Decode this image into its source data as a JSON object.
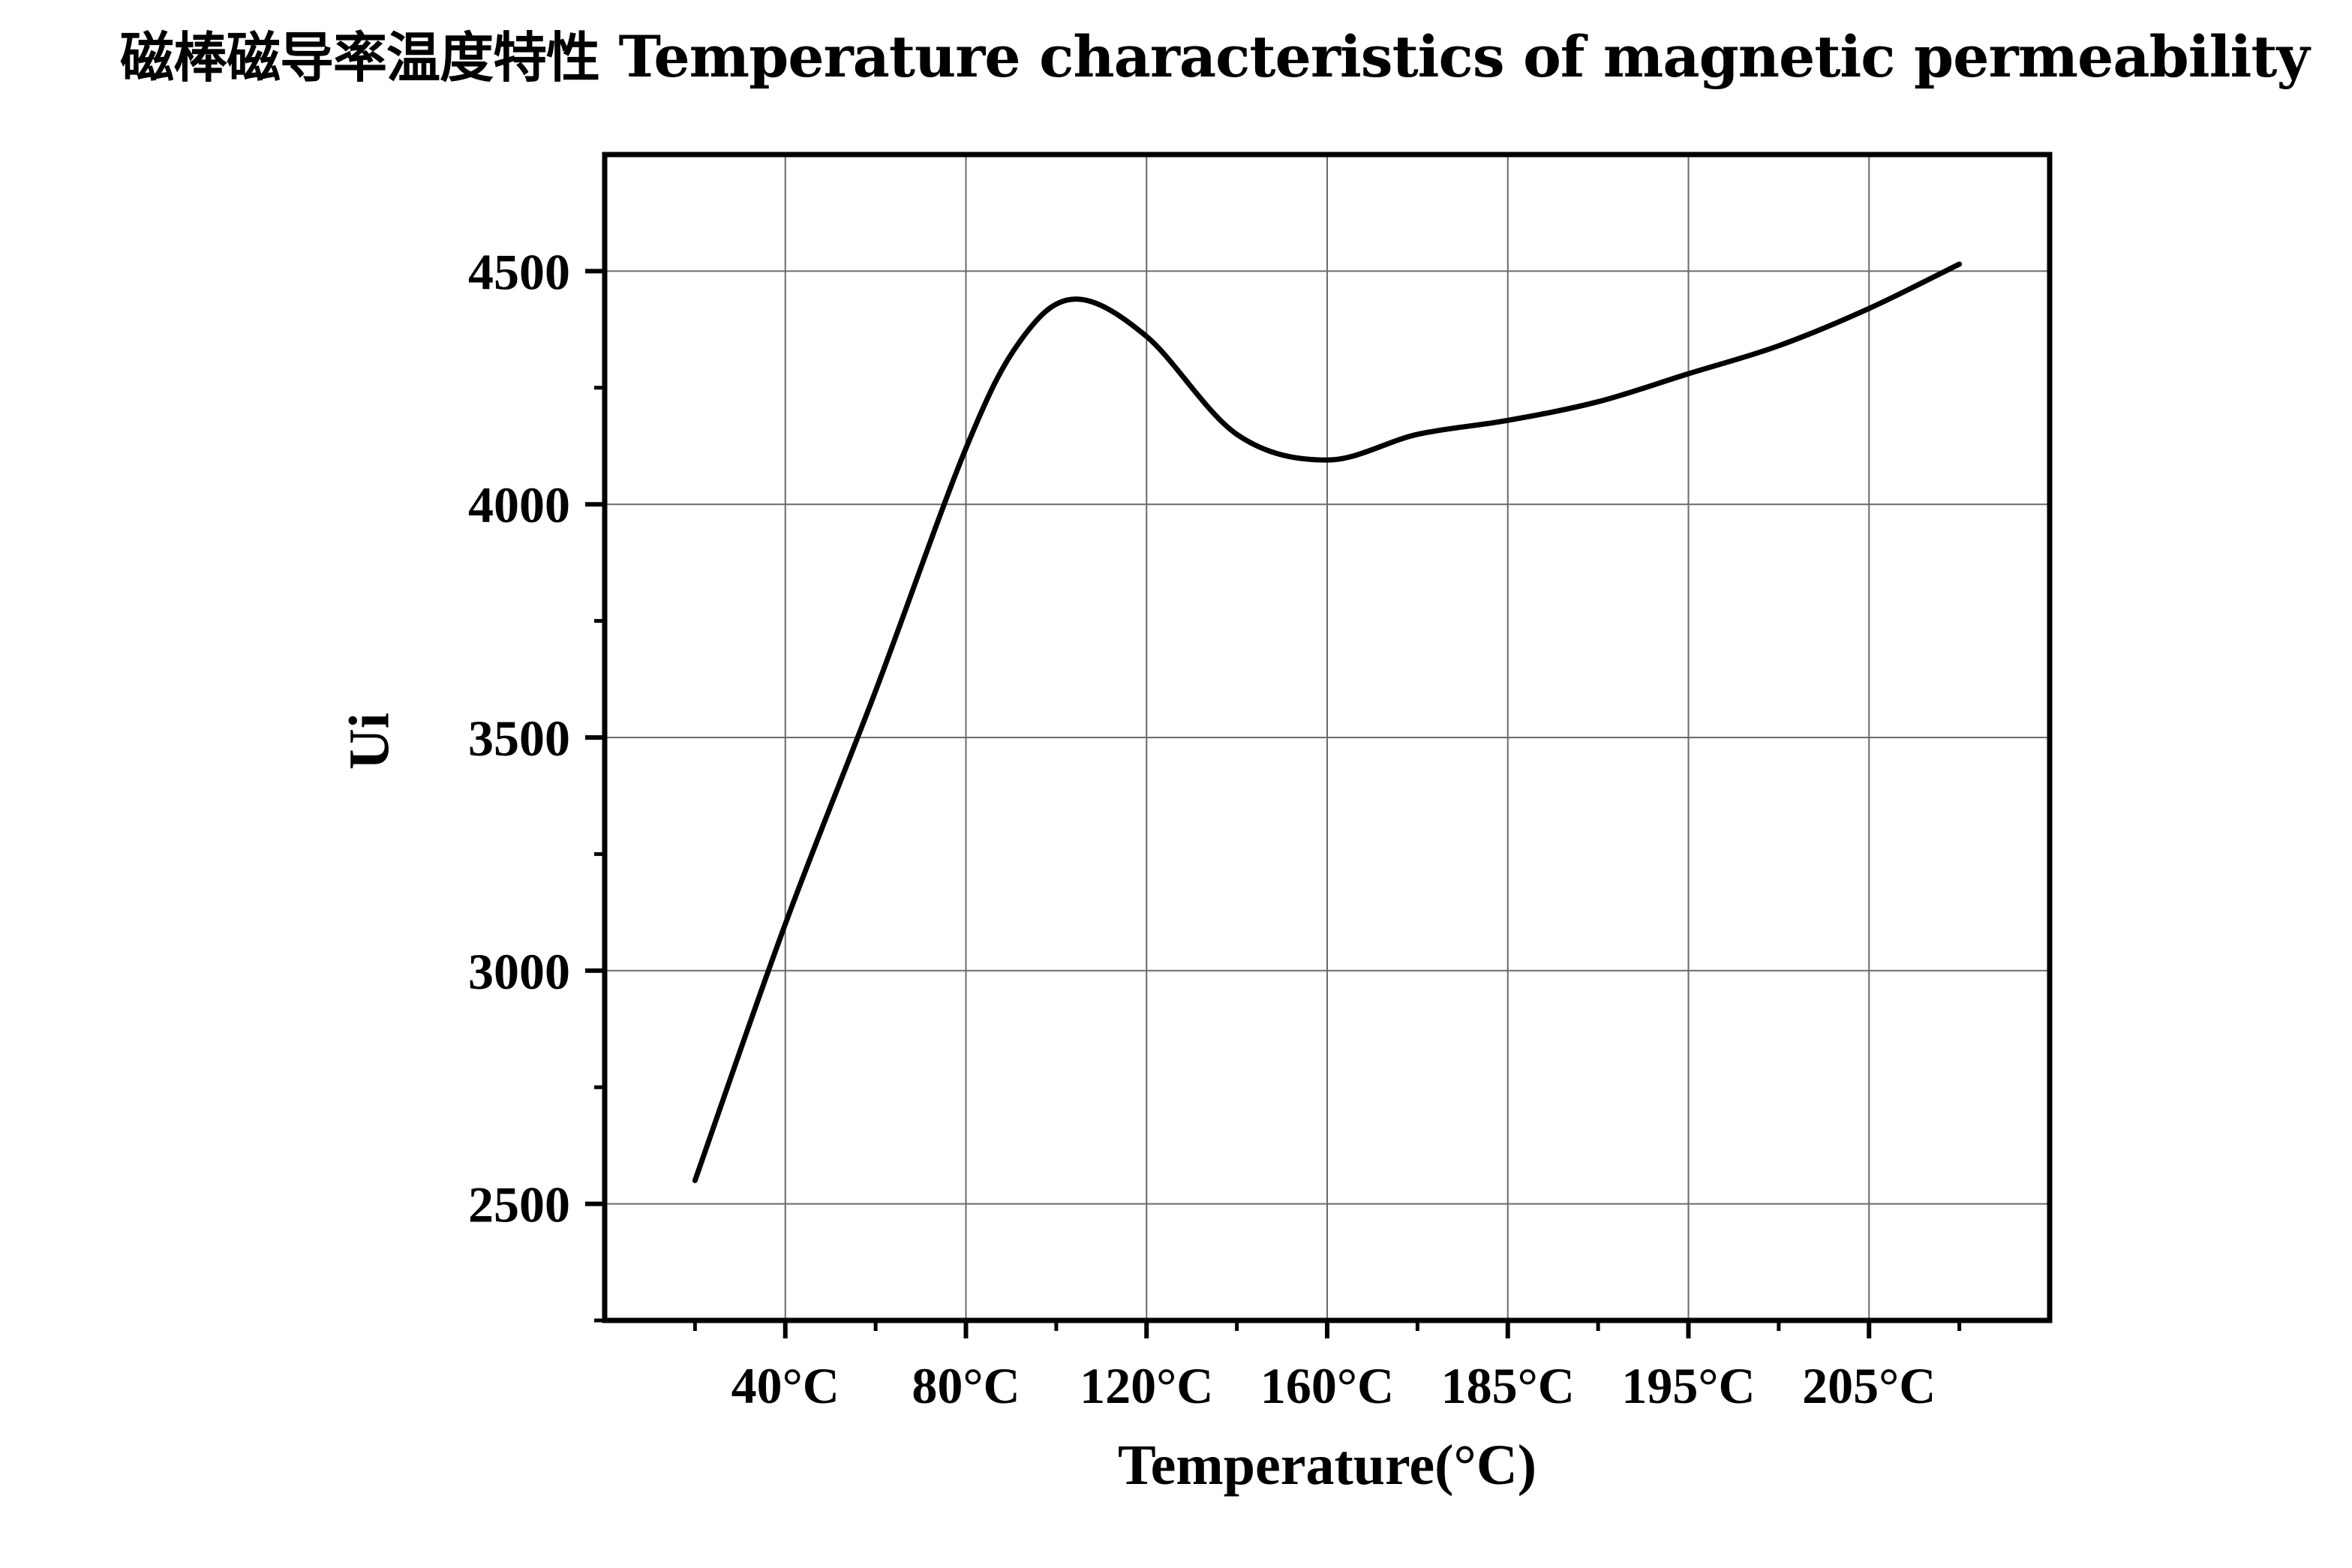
{
  "page": {
    "title_cn": "磁棒磁导率温度特性",
    "title_en": "Temperature characteristics of magnetic permeability"
  },
  "chart_data": {
    "type": "line",
    "title": "磁棒磁导率温度特性 Temperature characteristics of magnetic permeability",
    "xlabel": "Temperature(°C)",
    "ylabel": "Ui",
    "categories": [
      "40°C",
      "80°C",
      "120°C",
      "160°C",
      "185°C",
      "195°C",
      "205°C"
    ],
    "ylim": [
      2250,
      4750
    ],
    "yticks": [
      2500,
      3000,
      3500,
      4000,
      4500
    ],
    "grid": true,
    "legend": "none",
    "line_color": "#000000",
    "series": [
      {
        "points": [
          {
            "x": 0.5,
            "y": 2550
          },
          {
            "x": 1.0,
            "y": 3100
          },
          {
            "x": 1.5,
            "y": 3600
          },
          {
            "x": 2.0,
            "y": 4120
          },
          {
            "x": 2.3,
            "y": 4350
          },
          {
            "x": 2.6,
            "y": 4440
          },
          {
            "x": 3.0,
            "y": 4360
          },
          {
            "x": 3.5,
            "y": 4150
          },
          {
            "x": 4.0,
            "y": 4095
          },
          {
            "x": 4.5,
            "y": 4150
          },
          {
            "x": 5.0,
            "y": 4180
          },
          {
            "x": 5.5,
            "y": 4220
          },
          {
            "x": 6.0,
            "y": 4280
          },
          {
            "x": 6.5,
            "y": 4340
          },
          {
            "x": 7.0,
            "y": 4420
          },
          {
            "x": 7.5,
            "y": 4515
          }
        ]
      }
    ]
  }
}
